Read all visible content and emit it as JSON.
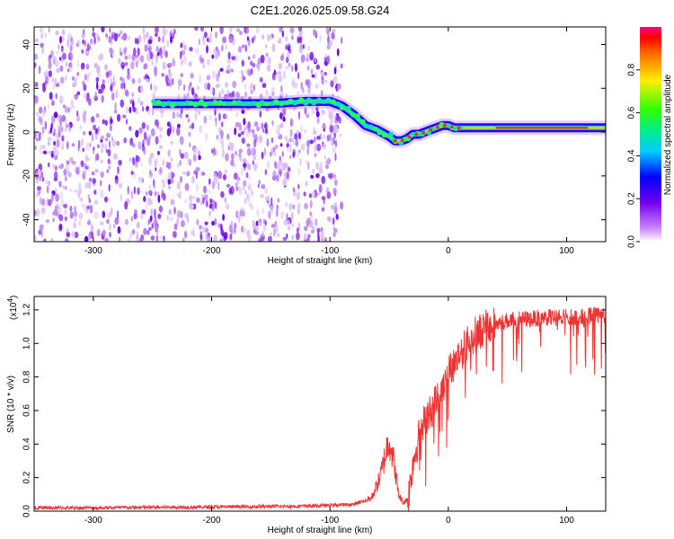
{
  "title": "C2E1.2026.025.09.58.G24",
  "chart_data": [
    {
      "type": "heatmap",
      "xlabel": "Height of straight line (km)",
      "ylabel": "Frequency (Hz)",
      "xlim": [
        -350,
        133
      ],
      "ylim": [
        -50,
        48
      ],
      "xticks": [
        -300,
        -200,
        -100,
        0,
        100
      ],
      "yticks": [
        -40,
        -20,
        0,
        20,
        40
      ],
      "colorbar": {
        "label": "Normalized spectral amplitude",
        "range": [
          0,
          1
        ],
        "ticks": [
          "0.0",
          "0.2",
          "0.4",
          "0.6",
          "0.8"
        ],
        "tick_values": [
          0.0,
          0.2,
          0.4,
          0.6,
          0.8
        ]
      },
      "noise_region": {
        "x": [
          -350,
          -100
        ],
        "y": [
          -50,
          48
        ]
      },
      "ridge": {
        "x": [
          -250,
          -200,
          -150,
          -120,
          -100,
          -90,
          -80,
          -70,
          -60,
          -50,
          -45,
          -40,
          -35,
          -30,
          -25,
          -20,
          -15,
          -10,
          -5,
          0,
          5,
          10,
          50,
          100,
          133
        ],
        "y": [
          13,
          13,
          13,
          14,
          14,
          12,
          8,
          3,
          1,
          -2,
          -4,
          -4,
          -3,
          -1,
          -1,
          0,
          1,
          2,
          3,
          3,
          2,
          2,
          2,
          2,
          2
        ]
      }
    },
    {
      "type": "line",
      "xlabel": "Height of straight line (km)",
      "ylabel": "SNR (10 * v/v)",
      "y_multiplier": "(x10",
      "y_multiplier_exp": "4",
      "y_multiplier_close": ")",
      "xlim": [
        -350,
        133
      ],
      "ylim": [
        0,
        1.28
      ],
      "xticks": [
        -300,
        -200,
        -100,
        0,
        100
      ],
      "yticks": [
        "0.0",
        "0.2",
        "0.4",
        "0.6",
        "0.8",
        "1.0",
        "1.2"
      ],
      "ytick_values": [
        0.0,
        0.2,
        0.4,
        0.6,
        0.8,
        1.0,
        1.2
      ],
      "color": "#ee3333",
      "trend": {
        "x": [
          -350,
          -300,
          -200,
          -120,
          -80,
          -65,
          -58,
          -53,
          -50,
          -46,
          -42,
          -38,
          -34,
          -30,
          -25,
          -20,
          -15,
          -10,
          -5,
          0,
          5,
          10,
          15,
          20,
          30,
          40,
          50,
          60,
          70,
          80,
          90,
          100,
          110,
          120,
          133
        ],
        "y": [
          0.02,
          0.02,
          0.025,
          0.03,
          0.04,
          0.08,
          0.2,
          0.35,
          0.45,
          0.3,
          0.1,
          0.05,
          0.08,
          0.3,
          0.45,
          0.55,
          0.6,
          0.68,
          0.75,
          0.85,
          0.9,
          0.95,
          1.0,
          1.05,
          1.1,
          1.12,
          1.14,
          1.15,
          1.15,
          1.16,
          1.16,
          1.16,
          1.16,
          1.17,
          1.18
        ]
      }
    }
  ]
}
